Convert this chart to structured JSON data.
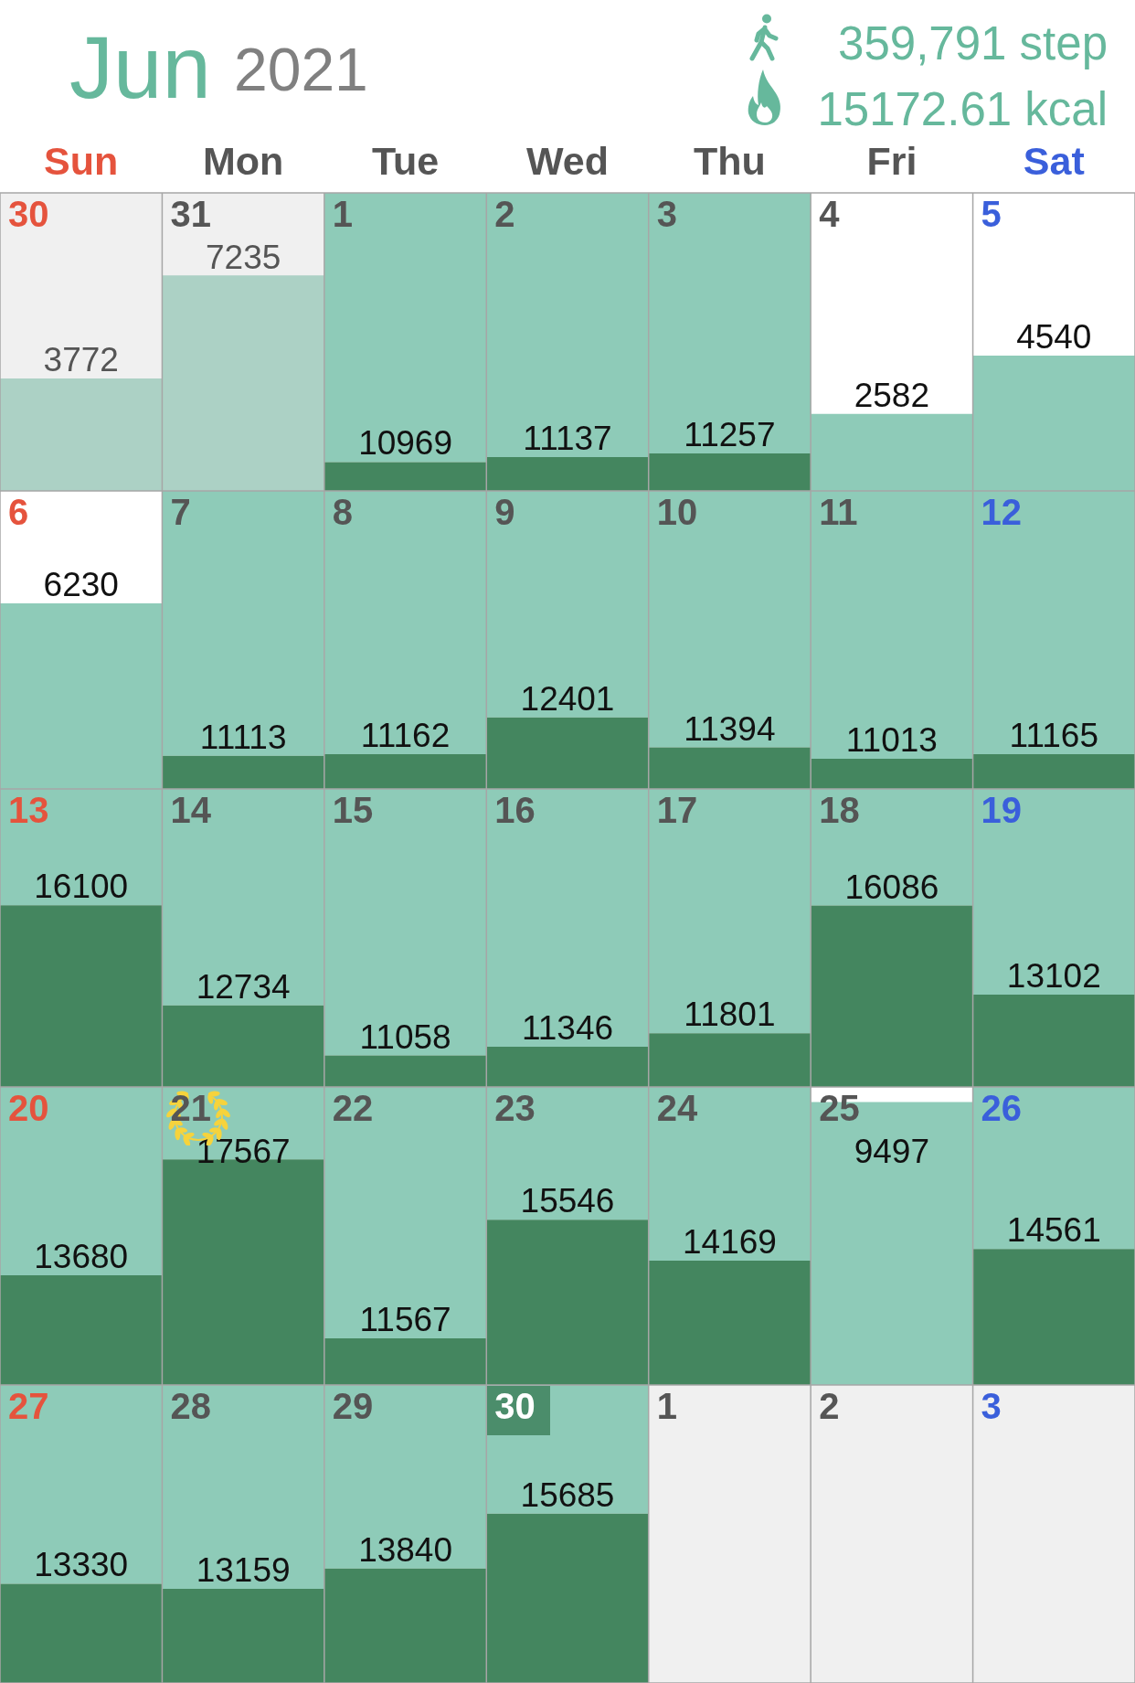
{
  "chart_data": {
    "type": "heatmap",
    "title": "Jun",
    "subtitle": "2021",
    "categories": [
      "Sun",
      "Mon",
      "Tue",
      "Wed",
      "Thu",
      "Fri",
      "Sat"
    ],
    "y_categories": [
      null,
      null,
      null,
      null,
      null
    ],
    "cells": [
      [
        3772,
        7235,
        10969,
        11137,
        11257,
        2582,
        4540
      ],
      [
        6230,
        11113,
        11162,
        12401,
        11394,
        11013,
        11165
      ],
      [
        16100,
        12734,
        11058,
        11346,
        11801,
        16086,
        13102
      ],
      [
        13680,
        17567,
        11567,
        15546,
        14169,
        9497,
        14561
      ],
      [
        13330,
        13159,
        13840,
        15685,
        null,
        null,
        null
      ]
    ],
    "data_labels": true,
    "annotations": [
      "359,791 step",
      "15172.61 kcal",
      "30",
      "31",
      "1",
      "2",
      "3",
      "4",
      "5",
      "6",
      "7",
      "8",
      "9",
      "10",
      "11",
      "12",
      "13",
      "14",
      "15",
      "16",
      "17",
      "18",
      "19",
      "20",
      "21",
      "22",
      "23",
      "24",
      "25",
      "26",
      "27",
      "28",
      "29",
      "30",
      "1",
      "2",
      "3"
    ]
  }
}
